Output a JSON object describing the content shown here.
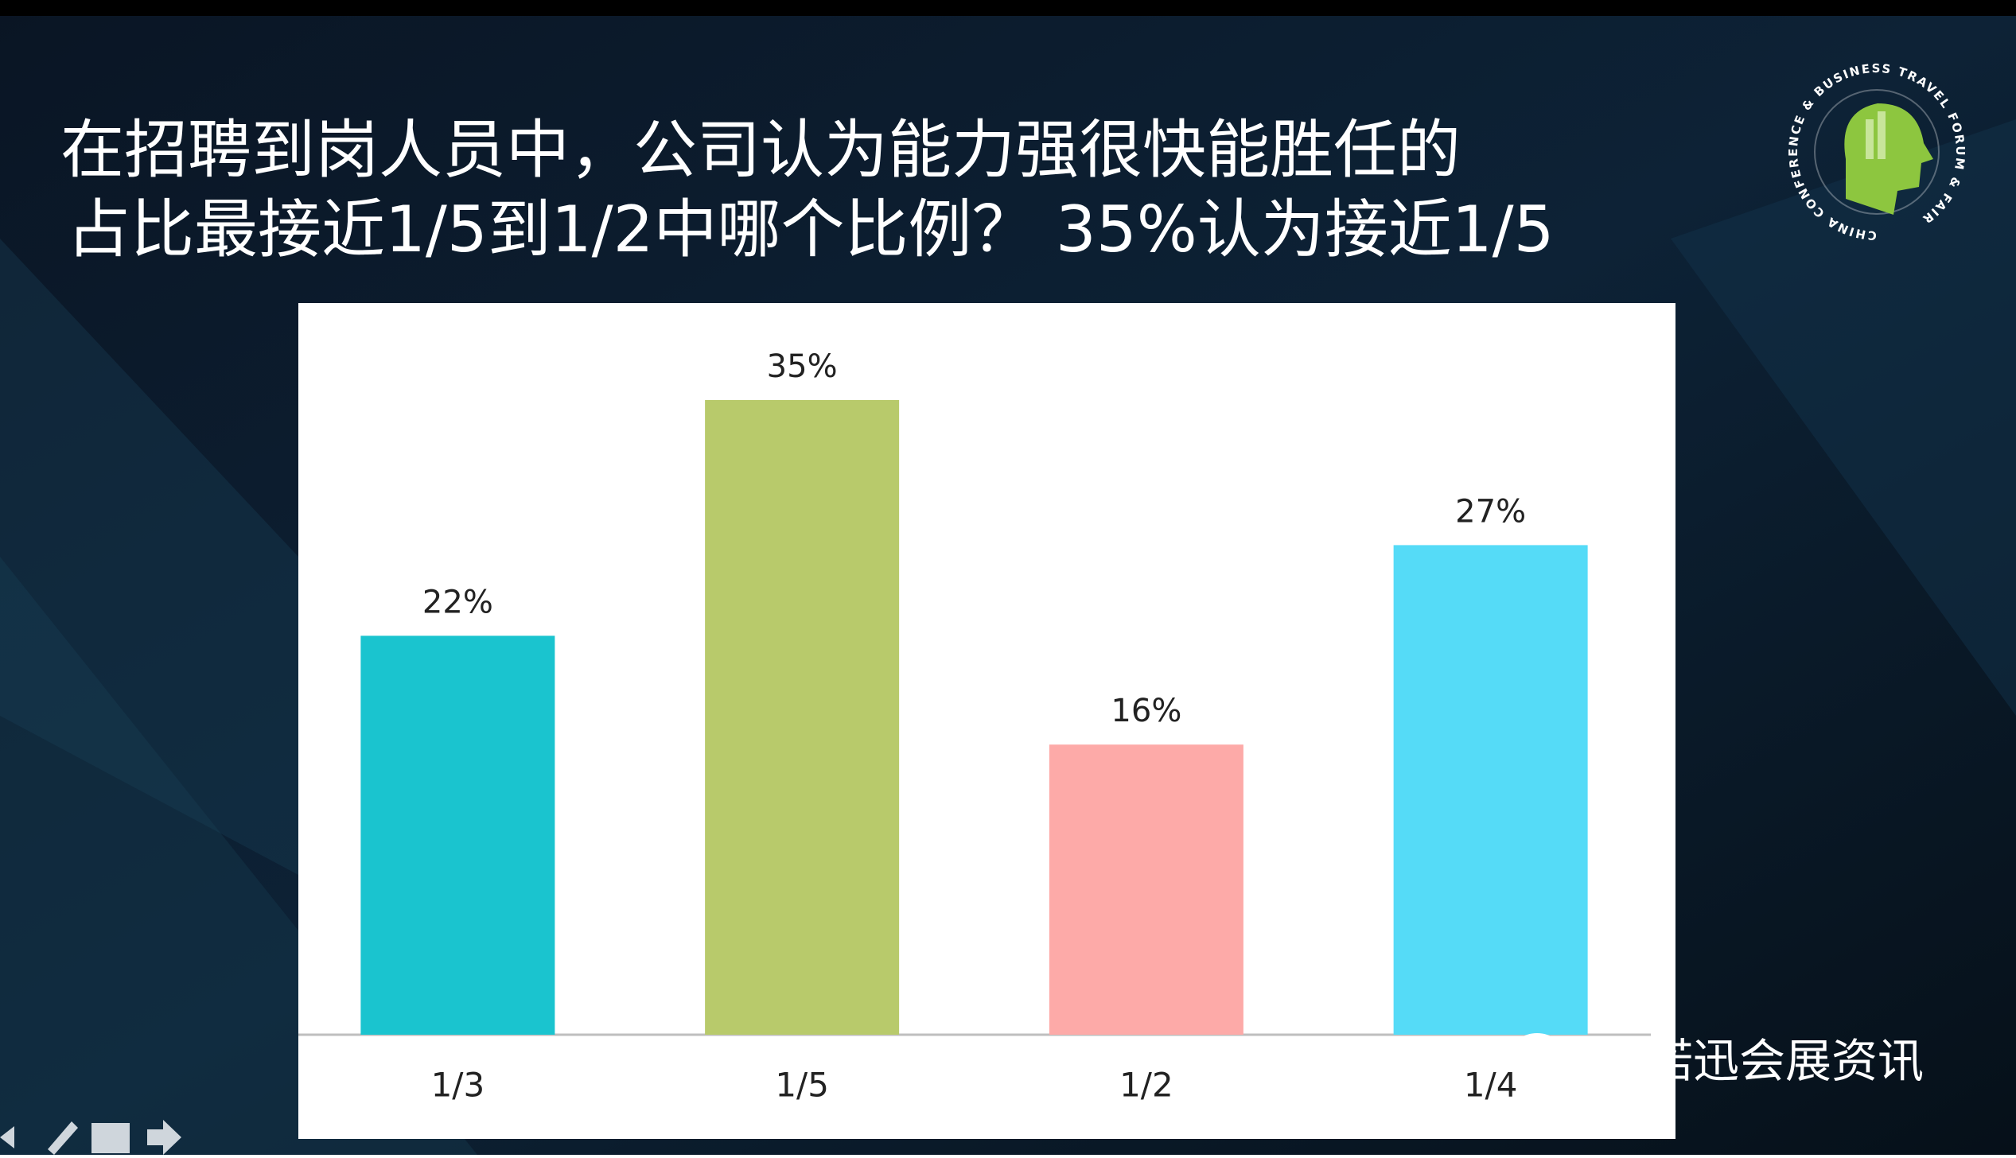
{
  "chart_data": {
    "type": "bar",
    "title": [
      "在招聘到岗人员中，公司认为能力强很快能胜任的",
      "占比最接近1/5到1/2中哪个比例？ 35%认为接近1/5"
    ],
    "categories": [
      "1/3",
      "1/5",
      "1/2",
      "1/4"
    ],
    "values": [
      22,
      35,
      16,
      27
    ],
    "value_labels": [
      "22%",
      "35%",
      "16%",
      "27%"
    ],
    "colors": [
      "#1ac4cf",
      "#b8ca6b",
      "#fdaaa8",
      "#55dbf7"
    ]
  },
  "logo": {
    "text": "CHINA CONFERENCE & BUSINESS TRAVEL FORUM & FAIR"
  },
  "watermark": "赛诺迅会展资讯"
}
